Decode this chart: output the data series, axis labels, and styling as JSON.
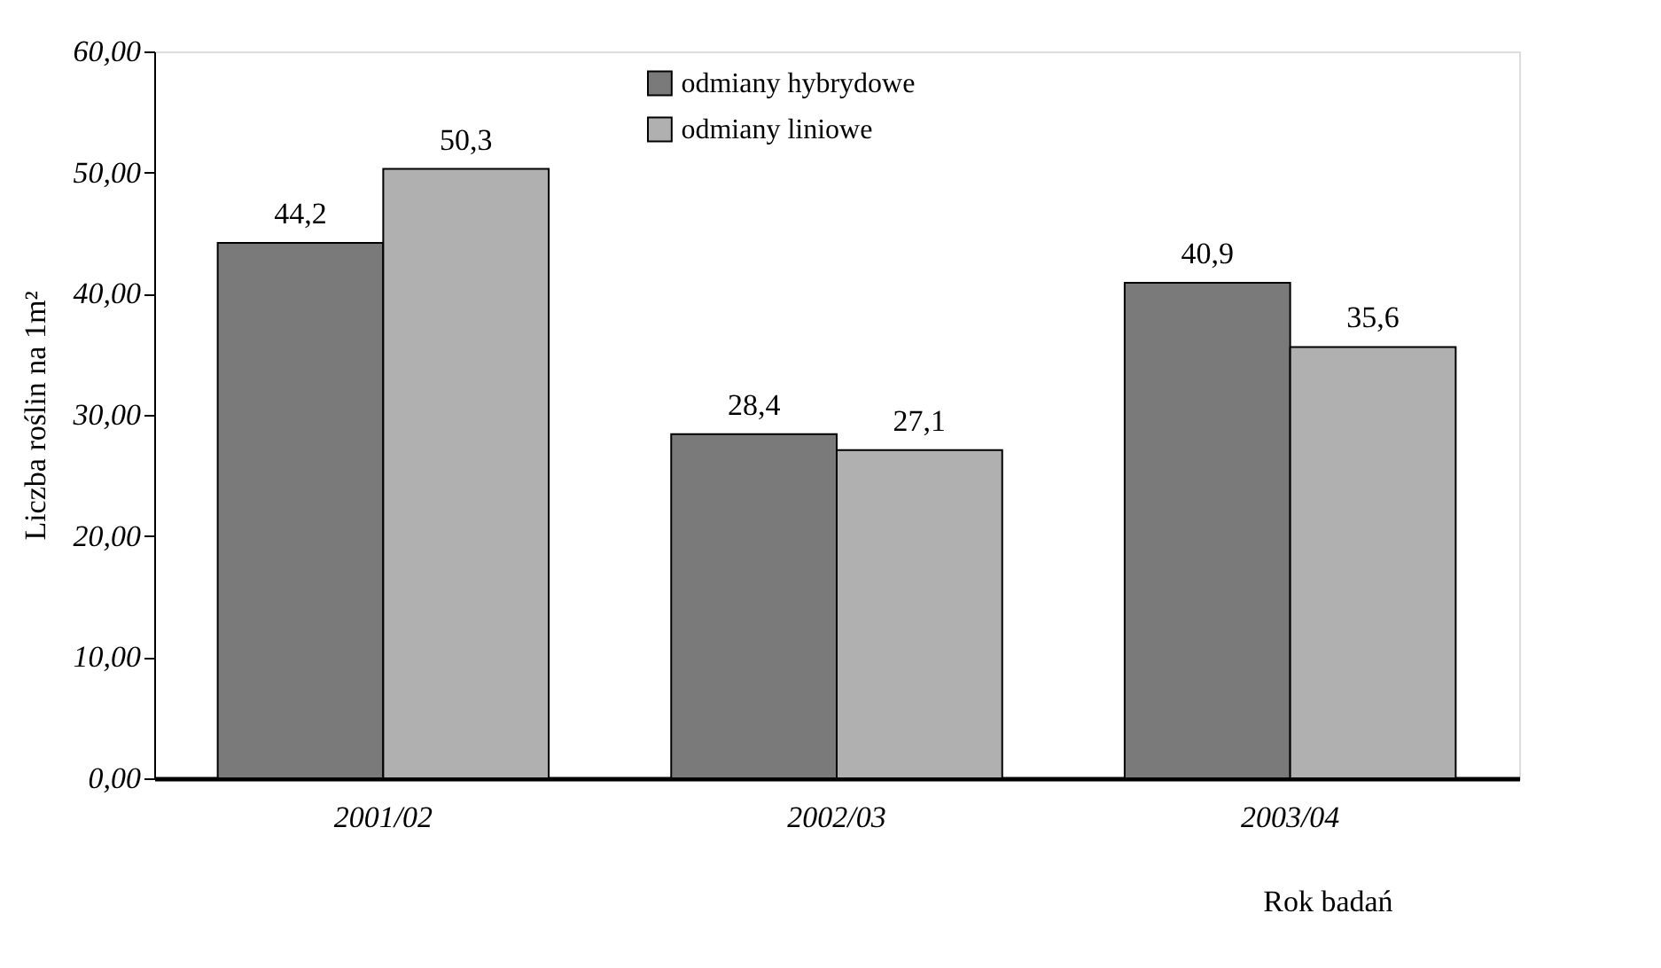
{
  "chart_data": {
    "type": "bar",
    "xlabel": "Rok badań",
    "ylabel": "Liczba roślin na 1m²",
    "categories": [
      "2001/02",
      "2002/03",
      "2003/04"
    ],
    "series": [
      {
        "name": "odmiany hybrydowe",
        "color": "#7a7a7a",
        "values": [
          44.2,
          28.4,
          40.9
        ],
        "value_labels": [
          "44,2",
          "28,4",
          "40,9"
        ]
      },
      {
        "name": "odmiany liniowe",
        "color": "#b0b0b0",
        "values": [
          50.3,
          27.1,
          35.6
        ],
        "value_labels": [
          "50,3",
          "27,1",
          "35,6"
        ]
      }
    ],
    "ylim": [
      0,
      60
    ],
    "yticks": [
      {
        "value": 0,
        "label": "0,00"
      },
      {
        "value": 10,
        "label": "10,00"
      },
      {
        "value": 20,
        "label": "20,00"
      },
      {
        "value": 30,
        "label": "30,00"
      },
      {
        "value": 40,
        "label": "40,00"
      },
      {
        "value": 50,
        "label": "50,00"
      },
      {
        "value": 60,
        "label": "60,00"
      }
    ],
    "grid": false,
    "legend": "top"
  }
}
